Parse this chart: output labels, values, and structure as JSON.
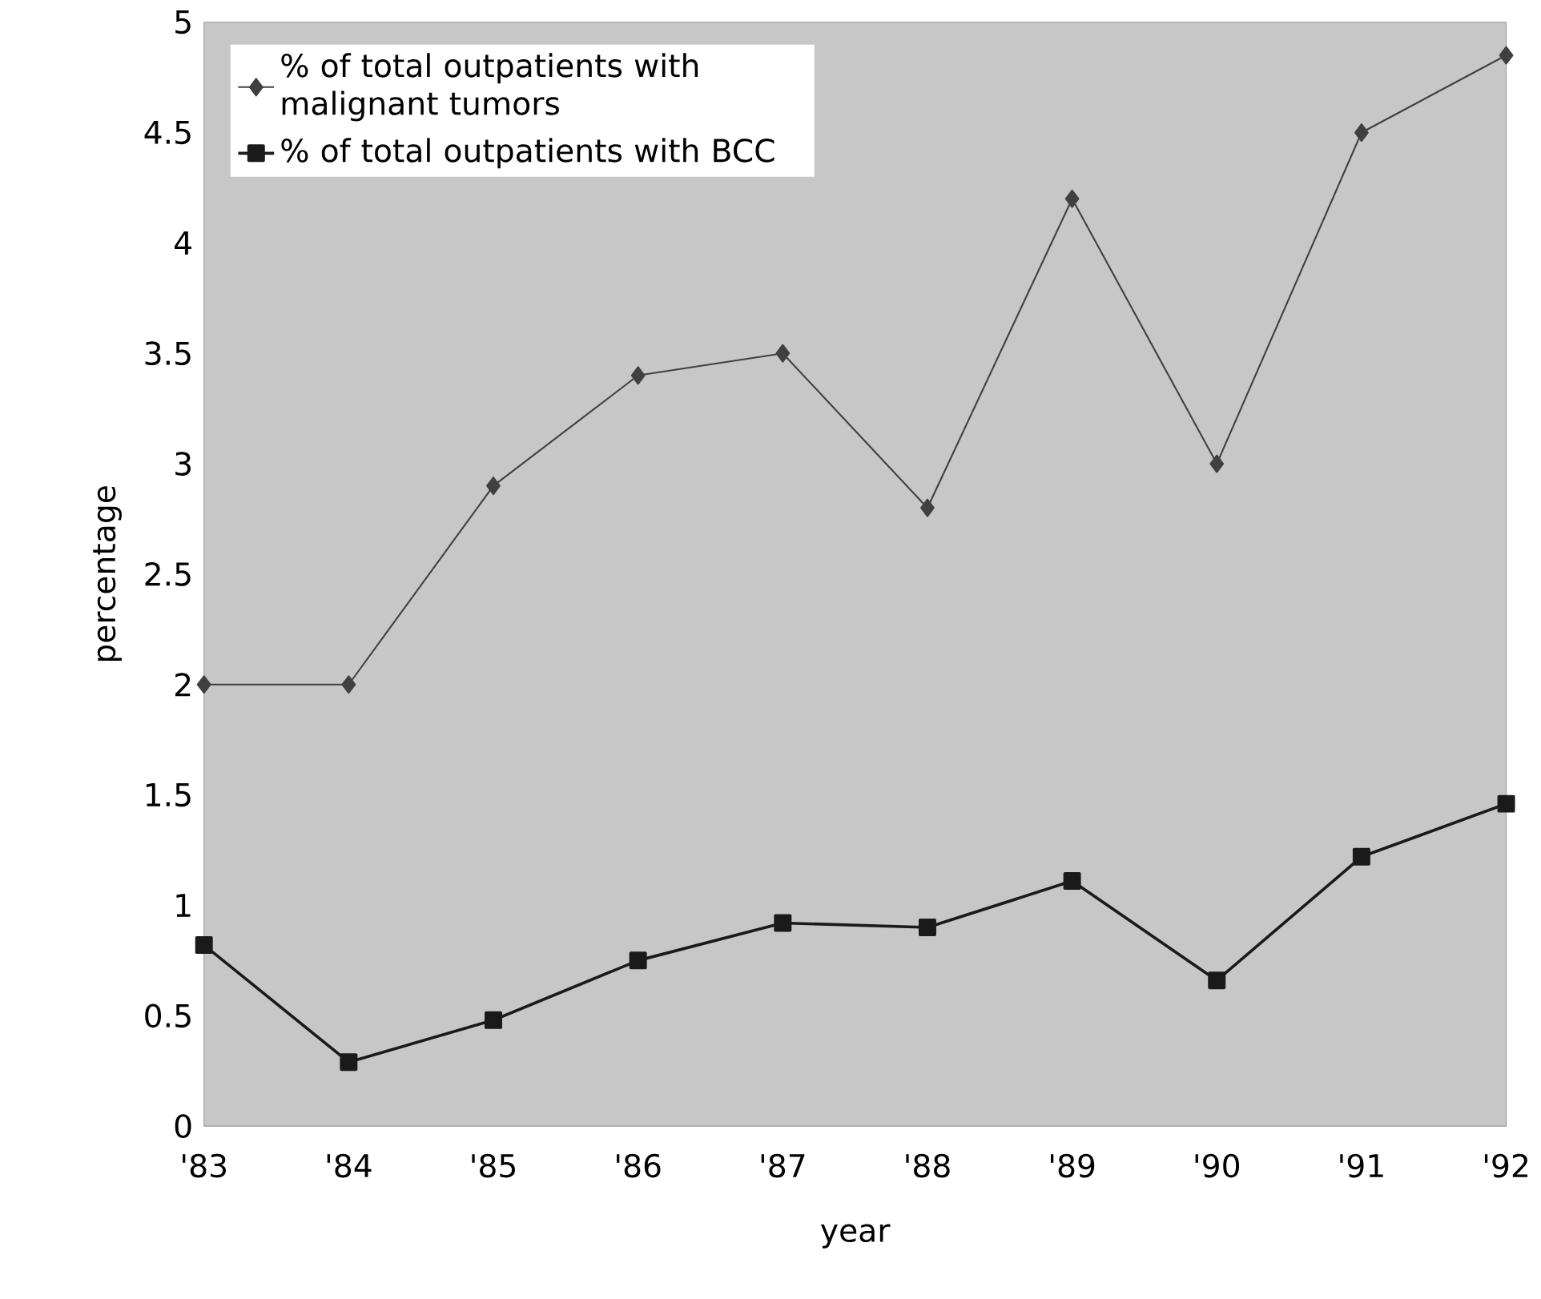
{
  "chart_data": {
    "type": "line",
    "xlabel": "year",
    "ylabel": "percentage",
    "categories": [
      "'83",
      "'84",
      "'85",
      "'86",
      "'87",
      "'88",
      "'89",
      "'90",
      "'91",
      "'92"
    ],
    "series": [
      {
        "name": "% of total outpatients with malignant tumors",
        "color": "#404040",
        "marker": "diamond",
        "values": [
          2.0,
          2.0,
          2.9,
          3.4,
          3.5,
          2.8,
          4.2,
          3.0,
          4.5,
          4.85
        ]
      },
      {
        "name": "% of total outpatients with BCC",
        "color": "#1a1a1a",
        "marker": "square",
        "values": [
          0.82,
          0.29,
          0.48,
          0.75,
          0.92,
          0.9,
          1.11,
          0.66,
          1.22,
          1.46
        ]
      }
    ],
    "ylim": [
      0,
      5
    ],
    "yticks": [
      0,
      0.5,
      1,
      1.5,
      2,
      2.5,
      3,
      3.5,
      4,
      4.5,
      5
    ],
    "grid": false,
    "legend": "top left",
    "line_style": "solid"
  }
}
